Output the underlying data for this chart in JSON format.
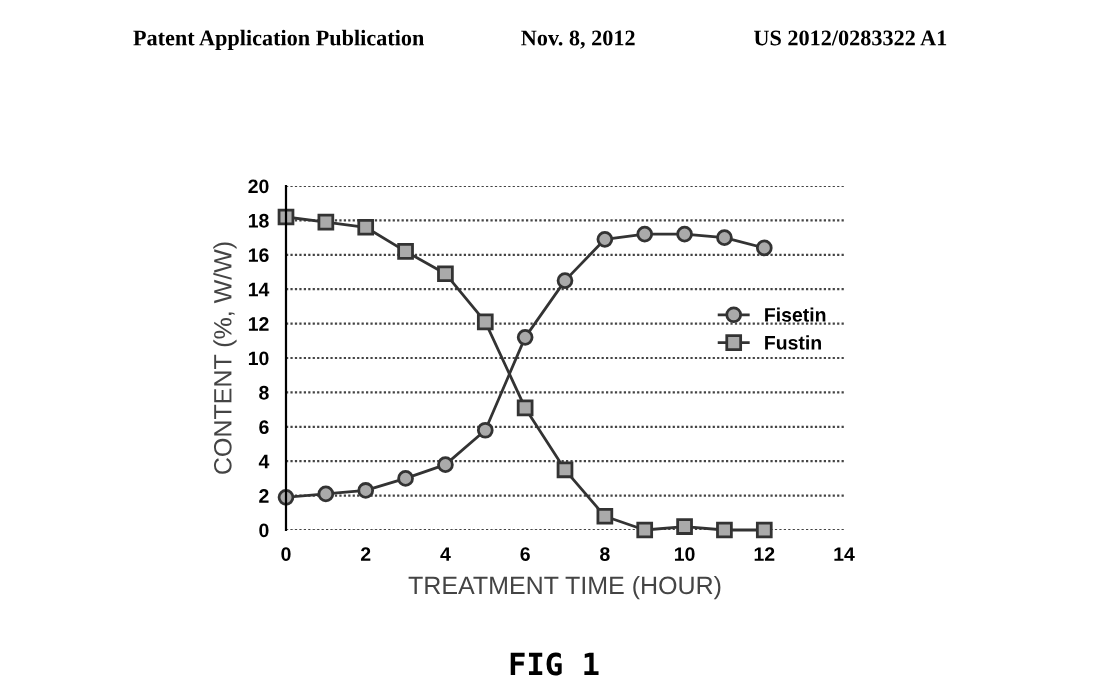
{
  "chart_data": {
    "type": "line",
    "xlabel": "TREATMENT TIME (HOUR)",
    "ylabel": "CONTENT (%, W/W)",
    "x": [
      0,
      1,
      2,
      3,
      4,
      5,
      6,
      7,
      8,
      9,
      10,
      11,
      12
    ],
    "series": [
      {
        "name": "Fisetin",
        "color": "#333333",
        "marker": "circle",
        "values": [
          1.9,
          2.1,
          2.3,
          3.0,
          3.8,
          5.8,
          11.2,
          14.5,
          16.9,
          17.2,
          17.2,
          17.0,
          16.4
        ]
      },
      {
        "name": "Fustin",
        "color": "#333333",
        "marker": "square",
        "values": [
          18.2,
          17.9,
          17.6,
          16.2,
          14.9,
          12.1,
          7.1,
          3.5,
          0.8,
          0,
          0.2,
          0,
          0
        ]
      }
    ],
    "xlim": [
      0,
      14
    ],
    "xticks": [
      0,
      2,
      4,
      6,
      8,
      10,
      12,
      14
    ],
    "ylim": [
      0,
      20
    ],
    "yticks": [
      0,
      2,
      4,
      6,
      8,
      10,
      12,
      14,
      16,
      18,
      20
    ],
    "grid": "y",
    "legend": "right",
    "line_style": "solid",
    "annotations": [
      "Patent Application Publication",
      "Nov. 8, 2012",
      "US 2012/0283322 A1",
      "FIG 1"
    ]
  }
}
